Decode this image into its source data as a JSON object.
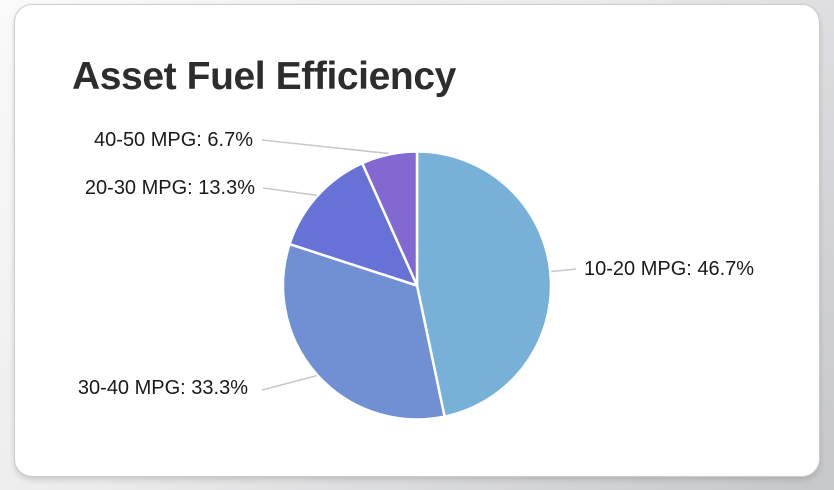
{
  "page": {
    "background_top_color": "#fafafa",
    "background_bottom_color": "#c6c7c9",
    "card_background": "#ffffff",
    "card_border_color": "#cbcbcd"
  },
  "card": {
    "title": "Asset Fuel Efficiency"
  },
  "chart_data": {
    "type": "pie",
    "title": "Asset Fuel Efficiency",
    "categories": [
      "10-20 MPG",
      "30-40 MPG",
      "20-30 MPG",
      "40-50 MPG"
    ],
    "values": [
      46.7,
      33.3,
      13.3,
      6.7
    ],
    "slices": [
      {
        "label": "10-20 MPG",
        "value": 46.7,
        "display": "10-20 MPG: 46.7%",
        "color": "#78B1D8"
      },
      {
        "label": "30-40 MPG",
        "value": 33.3,
        "display": "30-40 MPG: 33.3%",
        "color": "#7190D4"
      },
      {
        "label": "20-30 MPG",
        "value": 13.3,
        "display": "20-30 MPG: 13.3%",
        "color": "#6672D6"
      },
      {
        "label": "40-50 MPG",
        "value": 6.7,
        "display": "40-50 MPG: 6.7%",
        "color": "#8268D1"
      }
    ],
    "start_angle_deg": 0,
    "direction": "clockwise",
    "slice_border_color": "#ffffff",
    "leader_line_color": "#c9c9c9",
    "label_text_color": "#1a1a1a",
    "legend_position": "outside-callout-labels",
    "grid": false
  }
}
